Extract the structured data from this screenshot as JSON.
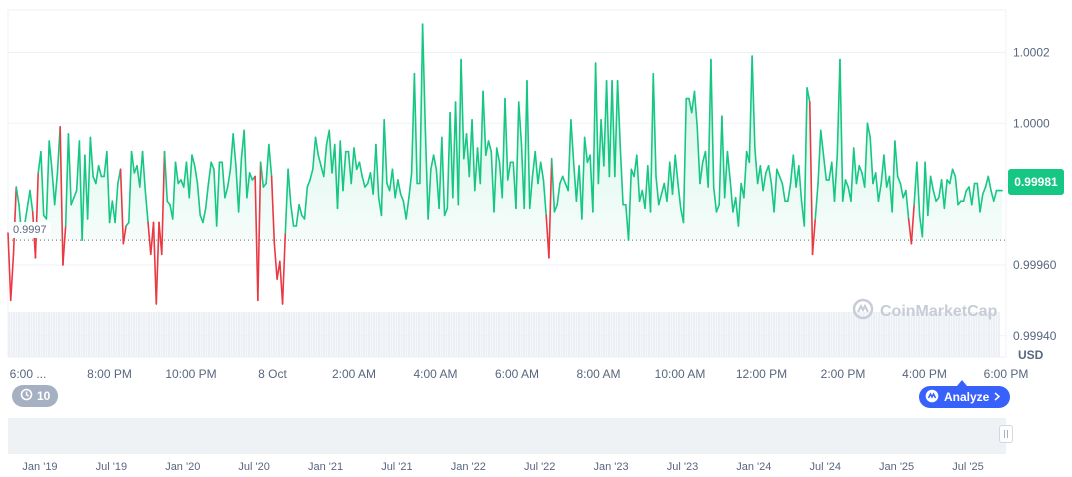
{
  "chart_data": {
    "type": "area",
    "ylim": [
      0.99934,
      1.00032
    ],
    "yticks": [
      "1.0002",
      "1.0000",
      "0.99960",
      "0.99940"
    ],
    "ytick_values": [
      1.0002,
      1.0,
      0.9996,
      0.9994
    ],
    "unit_label": "USD",
    "current_price": "0.99981",
    "baseline_label": "0.9997",
    "baseline_value": 0.99967,
    "x_labels": [
      "6:00 ...",
      "8:00 PM",
      "10:00 PM",
      "8 Oct",
      "2:00 AM",
      "4:00 AM",
      "6:00 AM",
      "8:00 AM",
      "10:00 AM",
      "12:00 PM",
      "2:00 PM",
      "4:00 PM",
      "6:00 PM"
    ],
    "navigator_labels": [
      "Jan '19",
      "Jul '19",
      "Jan '20",
      "Jul '20",
      "Jan '21",
      "Jul '21",
      "Jan '22",
      "Jul '22",
      "Jan '23",
      "Jul '23",
      "Jan '24",
      "Jul '24",
      "Jan '25",
      "Jul '25"
    ],
    "values": [
      0.99969,
      0.9995,
      0.99963,
      0.99982,
      0.99977,
      0.99968,
      0.99971,
      0.99976,
      0.99981,
      0.99975,
      0.99962,
      0.99986,
      0.99992,
      0.99974,
      0.99973,
      0.99995,
      0.99987,
      0.99977,
      0.99986,
      0.99999,
      0.9996,
      0.99971,
      0.99997,
      0.99977,
      0.99979,
      0.99981,
      0.99995,
      0.99967,
      0.99991,
      0.99973,
      0.99996,
      0.99985,
      0.99983,
      0.99988,
      0.99985,
      0.99985,
      0.99992,
      0.99972,
      0.99978,
      0.99972,
      0.99983,
      0.99987,
      0.99966,
      0.99971,
      0.99972,
      0.99992,
      0.99986,
      0.99988,
      0.99982,
      0.99992,
      0.99981,
      0.99972,
      0.99963,
      0.99972,
      0.99949,
      0.99972,
      0.99963,
      0.99992,
      0.99978,
      0.99977,
      0.99973,
      0.99989,
      0.99983,
      0.99984,
      0.99982,
      0.99989,
      0.99979,
      0.99991,
      0.99988,
      0.99983,
      0.99974,
      0.99972,
      0.99976,
      0.99983,
      0.99989,
      0.99987,
      0.99971,
      0.99989,
      0.99989,
      0.99979,
      0.99982,
      0.99987,
      0.99997,
      0.99988,
      0.99975,
      0.9999,
      0.99998,
      0.99979,
      0.99986,
      0.99984,
      0.99985,
      0.9995,
      0.99989,
      0.99982,
      0.99983,
      0.99994,
      0.99985,
      0.99966,
      0.99956,
      0.99961,
      0.99949,
      0.99969,
      0.99987,
      0.99977,
      0.99971,
      0.99971,
      0.99977,
      0.99974,
      0.99973,
      0.99982,
      0.99984,
      0.99987,
      0.99996,
      0.99991,
      0.99988,
      0.99985,
      0.99994,
      0.99998,
      0.99986,
      0.99994,
      0.99976,
      0.99995,
      0.99981,
      0.99992,
      0.99992,
      0.99983,
      0.99993,
      0.99987,
      0.99989,
      0.99985,
      0.99982,
      0.99983,
      0.99986,
      0.9998,
      0.99994,
      0.99979,
      0.99974,
      1.00001,
      0.99983,
      0.99981,
      0.99987,
      0.99979,
      0.99984,
      0.9998,
      0.99978,
      0.99973,
      0.99979,
      0.99986,
      1.00014,
      0.99983,
      0.99983,
      1.00028,
      0.99998,
      0.99973,
      0.99987,
      0.99991,
      0.99987,
      0.99976,
      0.99996,
      0.99974,
      0.99976,
      1.00003,
      0.99979,
      1.00006,
      0.99977,
      1.00018,
      0.9999,
      0.99997,
      0.99985,
      1.00001,
      0.99981,
      0.99993,
      0.99983,
      1.00009,
      0.99991,
      0.99995,
      0.99992,
      0.99975,
      0.99993,
      0.99989,
      0.99979,
      1.00007,
      0.99984,
      0.99989,
      0.99989,
      0.99976,
      1.00006,
      0.99994,
      0.99976,
      1.00012,
      0.99976,
      0.99985,
      0.99992,
      0.99983,
      0.99989,
      0.99984,
      0.99974,
      0.99962,
      0.9999,
      0.99975,
      0.99977,
      0.99983,
      0.99985,
      0.99983,
      0.99981,
      1.00001,
      0.99989,
      0.99978,
      0.99988,
      0.99973,
      0.99996,
      0.99989,
      0.99991,
      0.99975,
      1.00017,
      0.99983,
      1.00001,
      0.99988,
      1.00012,
      0.99985,
      1.00012,
      0.99985,
      1.00012,
      0.99993,
      0.99977,
      0.99977,
      0.99967,
      0.99987,
      0.99985,
      0.99991,
      0.99978,
      0.99981,
      0.99976,
      0.99988,
      0.99975,
      1.00014,
      0.99985,
      0.99977,
      0.9998,
      0.99983,
      0.99978,
      0.99989,
      0.9998,
      0.99991,
      0.99983,
      0.99976,
      0.99972,
      1.00007,
      1.00007,
      1.00003,
      1.00009,
      0.99999,
      0.99983,
      0.99989,
      0.99992,
      0.99982,
      1.00018,
      0.99982,
      0.99975,
      0.99977,
      1.00002,
      0.99979,
      0.99992,
      0.99984,
      0.99975,
      0.99979,
      0.99971,
      0.99983,
      0.99979,
      0.99992,
      0.99989,
      1.00019,
      0.99993,
      0.99983,
      0.99988,
      0.99981,
      0.99986,
      0.99988,
      0.99983,
      0.99975,
      0.99987,
      0.99985,
      0.99983,
      0.99978,
      0.99978,
      0.99983,
      0.99991,
      0.99982,
      0.99988,
      0.99978,
      0.99971,
      1.0001,
      1.00006,
      0.99963,
      0.99973,
      0.99983,
      0.99998,
      0.99991,
      0.99984,
      0.99984,
      0.99989,
      0.99978,
      0.99991,
      1.00018,
      0.99978,
      0.99984,
      0.99982,
      0.99978,
      0.99993,
      0.99983,
      0.99988,
      0.99986,
      0.99982,
      1.0,
      0.99996,
      0.99983,
      0.99986,
      0.99978,
      0.99983,
      0.99991,
      0.99982,
      0.99985,
      0.99975,
      0.99995,
      0.99985,
      0.99983,
      0.99979,
      0.99981,
      0.99973,
      0.99966,
      0.99977,
      0.99989,
      0.99974,
      0.99968,
      0.99989,
      0.99974,
      0.99985,
      0.99981,
      0.99978,
      0.99979,
      0.99984,
      0.99976,
      0.99984,
      0.99983,
      0.99987,
      0.99985,
      0.99977,
      0.99978,
      0.99978,
      0.99981,
      0.99982,
      0.99977,
      0.99983,
      0.99983,
      0.99975,
      0.9998,
      0.99982,
      0.99985,
      0.99981,
      0.99978,
      0.99981,
      0.99981,
      0.99981
    ],
    "grid": true
  },
  "watermark": "CoinMarketCap",
  "history_button": {
    "icon": "history-icon",
    "label": "10"
  },
  "analyze_button": {
    "icon": "coinmarketcap-logo-icon",
    "label": "Analyze"
  },
  "colors": {
    "up": "#16c784",
    "down": "#ea3943",
    "accent": "#3861fb",
    "grid": "#eff2f5"
  }
}
